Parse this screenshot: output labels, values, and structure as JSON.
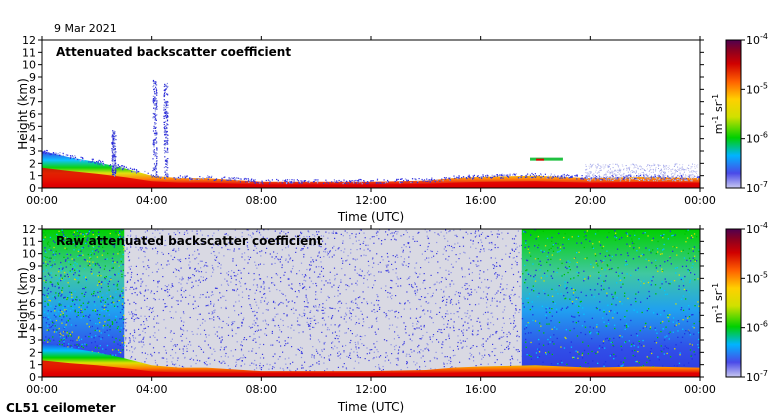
{
  "date": "9 Mar 2021",
  "footer": "CL51 ceilometer",
  "colors": {
    "background_grey": "#d9d9e3",
    "colormap": [
      "#c8c8f0",
      "#2020e0",
      "#00c0ff",
      "#00d000",
      "#e0e000",
      "#ff8000",
      "#e00000",
      "#8b0000",
      "#600060"
    ]
  },
  "chart_data": [
    {
      "type": "heatmap",
      "title": "Attenuated backscatter coefficient",
      "xlabel": "Time (UTC)",
      "ylabel": "Height (km)",
      "xlim": [
        "00:00",
        "00:00"
      ],
      "ylim": [
        0,
        12
      ],
      "x_ticks": [
        "00:00",
        "04:00",
        "08:00",
        "12:00",
        "16:00",
        "20:00",
        "00:00"
      ],
      "y_ticks": [
        "0",
        "1",
        "2",
        "3",
        "4",
        "5",
        "6",
        "7",
        "8",
        "9",
        "10",
        "11",
        "12"
      ],
      "colorbar": {
        "label": "m-1 sr-1",
        "scale": "log",
        "ticks": [
          "10-4",
          "10-5",
          "10-6",
          "10-7"
        ]
      },
      "boundary_layer_top_km": [
        {
          "hour": 0,
          "km": 3.0
        },
        {
          "hour": 1,
          "km": 2.5
        },
        {
          "hour": 2,
          "km": 2.1
        },
        {
          "hour": 3,
          "km": 1.6
        },
        {
          "hour": 4,
          "km": 1.0
        },
        {
          "hour": 5,
          "km": 0.8
        },
        {
          "hour": 6,
          "km": 0.8
        },
        {
          "hour": 8,
          "km": 0.5
        },
        {
          "hour": 10,
          "km": 0.5
        },
        {
          "hour": 12,
          "km": 0.5
        },
        {
          "hour": 14,
          "km": 0.6
        },
        {
          "hour": 15,
          "km": 0.8
        },
        {
          "hour": 16,
          "km": 0.9
        },
        {
          "hour": 18,
          "km": 1.0
        },
        {
          "hour": 20,
          "km": 0.8
        },
        {
          "hour": 22,
          "km": 0.9
        },
        {
          "hour": 24,
          "km": 0.8
        }
      ],
      "features": [
        {
          "kind": "cloud_plume",
          "hour": 4.1,
          "top_km": 8.8
        },
        {
          "kind": "cloud_plume",
          "hour": 4.5,
          "top_km": 8.6
        },
        {
          "kind": "cloud_plume",
          "hour": 2.6,
          "top_km": 4.7
        },
        {
          "kind": "layer",
          "hour_start": 17.8,
          "hour_end": 19.0,
          "km": 2.3
        },
        {
          "kind": "noise_region",
          "hour_start": 19.8,
          "hour_end": 23.9,
          "top_km": 2.0
        }
      ]
    },
    {
      "type": "heatmap",
      "title": "Raw attenuated backscatter coefficient",
      "xlabel": "Time (UTC)",
      "ylabel": "Height (km)",
      "xlim": [
        "00:00",
        "00:00"
      ],
      "ylim": [
        0,
        12
      ],
      "x_ticks": [
        "00:00",
        "04:00",
        "08:00",
        "12:00",
        "16:00",
        "20:00",
        "00:00"
      ],
      "y_ticks": [
        "0",
        "1",
        "2",
        "3",
        "4",
        "5",
        "6",
        "7",
        "8",
        "9",
        "10",
        "11",
        "12"
      ],
      "colorbar": {
        "label": "m-1 sr-1",
        "scale": "log",
        "ticks": [
          "10-4",
          "10-5",
          "10-6",
          "10-7"
        ]
      },
      "noise_regimes": [
        {
          "hour_start": 0,
          "hour_end": 3.0,
          "level": "high"
        },
        {
          "hour_start": 3.0,
          "hour_end": 17.5,
          "level": "low"
        },
        {
          "hour_start": 17.5,
          "hour_end": 24,
          "level": "high"
        }
      ]
    }
  ]
}
